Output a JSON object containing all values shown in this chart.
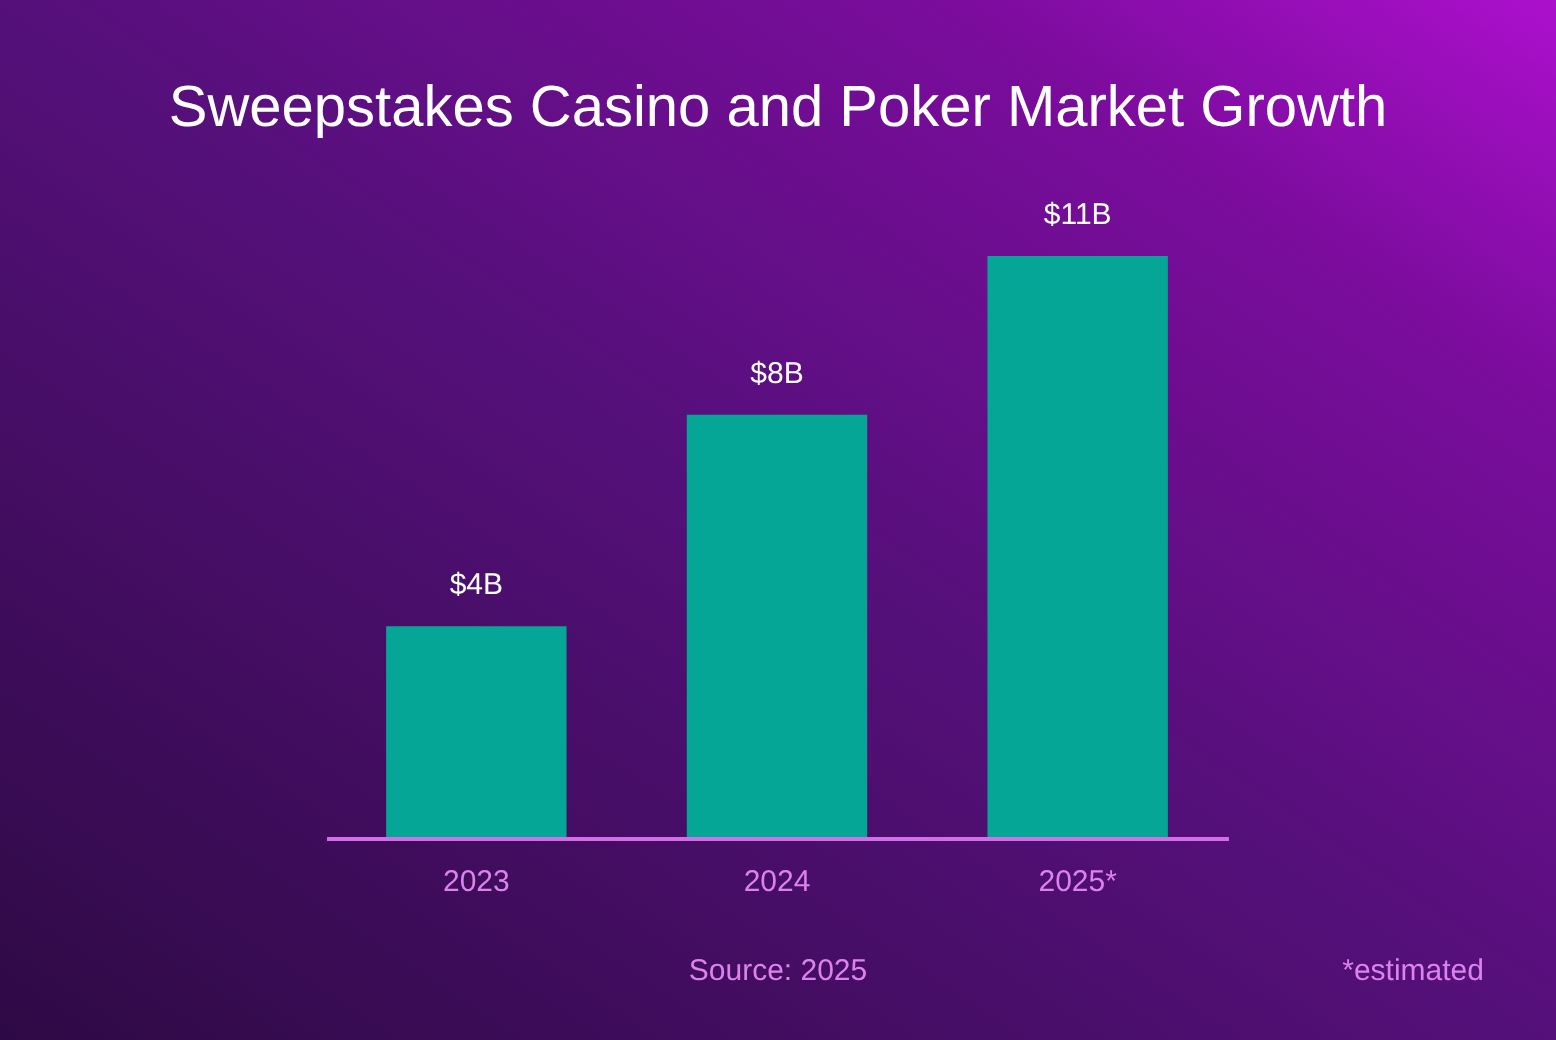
{
  "chart_data": {
    "type": "bar",
    "title": "Sweepstakes Casino and Poker Market Growth",
    "categories": [
      "2023",
      "2024",
      "2025*"
    ],
    "values": [
      4,
      8,
      11
    ],
    "value_labels": [
      "$4B",
      "$8B",
      "$11B"
    ],
    "color": "#06a696",
    "tick_labels": "x",
    "annotations": [
      "Source: 2025",
      "*estimated"
    ]
  }
}
